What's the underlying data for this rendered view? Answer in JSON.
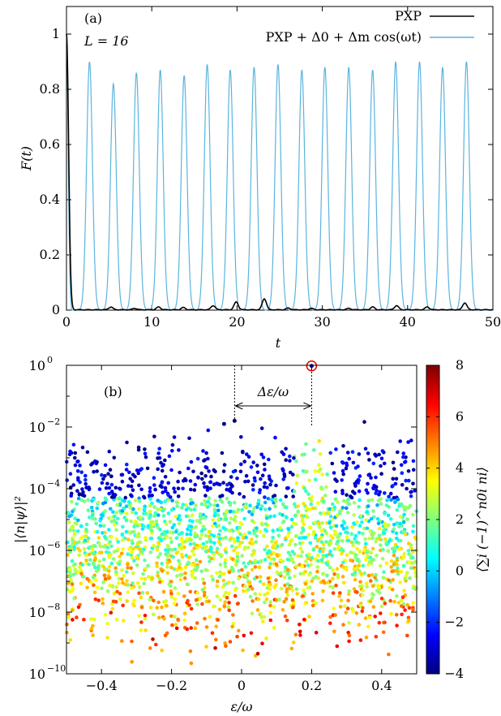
{
  "chart_data": [
    {
      "type": "line",
      "panel_label": "(a)",
      "annotation": "L = 16",
      "xlabel": "t",
      "ylabel": "F(t)",
      "xlim": [
        0,
        50
      ],
      "ylim": [
        0,
        1.1
      ],
      "xticks": [
        "0",
        "10",
        "20",
        "30",
        "40",
        "50"
      ],
      "yticks": [
        "0",
        "0.2",
        "0.4",
        "0.6",
        "0.8",
        "1"
      ],
      "legend_position": "top-right",
      "series": [
        {
          "name": "PXP",
          "color": "#000000",
          "period_approx": 2.35,
          "peaks_t": [
            5.2,
            8.0,
            10.8,
            13.7,
            17.2,
            19.9,
            23.2,
            26.0,
            28.7,
            33.1,
            35.9,
            38.7,
            42.3,
            46.7
          ],
          "peaks_F": [
            0.01,
            0.005,
            0.01,
            0.008,
            0.015,
            0.028,
            0.04,
            0.006,
            0.005,
            0.005,
            0.01,
            0.015,
            0.01,
            0.025
          ]
        },
        {
          "name": "PXP + Δ0 + Δm cos(ωt)",
          "color": "#5ab4de",
          "peaks_t": [
            2.7,
            5.5,
            8.2,
            11.0,
            13.8,
            16.5,
            19.2,
            22.0,
            24.8,
            27.6,
            30.3,
            33.1,
            35.9,
            38.6,
            41.4,
            44.1,
            46.9
          ],
          "peaks_F": [
            0.9,
            0.82,
            0.86,
            0.87,
            0.85,
            0.89,
            0.87,
            0.88,
            0.89,
            0.87,
            0.88,
            0.88,
            0.87,
            0.9,
            0.9,
            0.88,
            0.9
          ]
        }
      ]
    },
    {
      "type": "scatter",
      "panel_label": "(b)",
      "xlabel": "ε/ω",
      "ylabel": "|⟨n|ψ⟩|²",
      "xlim": [
        -0.5,
        0.5
      ],
      "ylim_log10": [
        -10,
        0
      ],
      "log_y": true,
      "xticks": [
        "−0.4",
        "−0.2",
        "0",
        "0.2",
        "0.4"
      ],
      "yticks": [
        "10",
        "10",
        "10",
        "10",
        "10",
        "10"
      ],
      "ytick_exponents": [
        "0",
        "−2",
        "−4",
        "−6",
        "−8",
        "−10"
      ],
      "colorbar_label": "⟨∑i (−1)^n0i ni⟩",
      "colorbar_range": [
        -4,
        8
      ],
      "colorbar_ticks": [
        "8",
        "6",
        "4",
        "2",
        "0",
        "−2",
        "−4"
      ],
      "annotation_arrow": "Δε/ω",
      "arrow_from_x": -0.02,
      "arrow_to_x": 0.2,
      "highlighted_point": {
        "x": 0.2,
        "log10y": -0.02,
        "c": -4
      },
      "notable_points": [
        {
          "x": -0.02,
          "log10y": -1.8,
          "c": -4
        },
        {
          "x": -0.05,
          "log10y": -1.9,
          "c": -4
        },
        {
          "x": 0.2,
          "log10y": -0.02,
          "c": -4
        }
      ]
    }
  ]
}
